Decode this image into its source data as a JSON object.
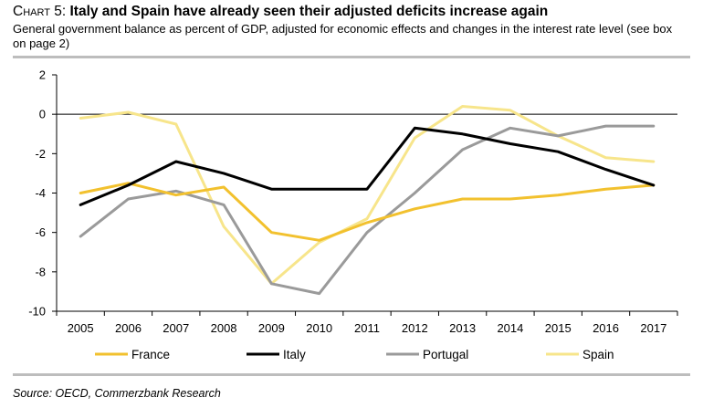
{
  "header": {
    "chart_label": "Chart 5:",
    "headline": "Italy and Spain have already seen their adjusted deficits increase again",
    "subtitle": "General government balance as percent of GDP, adjusted for economic effects and changes in the interest rate level (see box on page 2)"
  },
  "footer": {
    "source": "Source: OECD, Commerzbank Research"
  },
  "chart_data": {
    "type": "line",
    "x": [
      "2005",
      "2006",
      "2007",
      "2008",
      "2009",
      "2010",
      "2011",
      "2012",
      "2013",
      "2014",
      "2015",
      "2016",
      "2017"
    ],
    "ylim": [
      -10,
      2
    ],
    "yticks": [
      2,
      0,
      -2,
      -4,
      -6,
      -8,
      -10
    ],
    "grid": false,
    "legend_position": "bottom",
    "series": [
      {
        "name": "France",
        "color": "#f2c12e",
        "values": [
          -4.0,
          -3.5,
          -4.1,
          -3.7,
          -6.0,
          -6.4,
          -5.5,
          -4.8,
          -4.3,
          -4.3,
          -4.1,
          -3.8,
          -3.6
        ]
      },
      {
        "name": "Italy",
        "color": "#000000",
        "values": [
          -4.6,
          -3.6,
          -2.4,
          -3.0,
          -3.8,
          -3.8,
          -3.8,
          -0.7,
          -1.0,
          -1.5,
          -1.9,
          -2.8,
          -3.6
        ]
      },
      {
        "name": "Portugal",
        "color": "#9a9a9a",
        "values": [
          -6.2,
          -4.3,
          -3.9,
          -4.6,
          -8.6,
          -9.1,
          -6.0,
          -4.0,
          -1.8,
          -0.7,
          -1.1,
          -0.6,
          -0.6
        ]
      },
      {
        "name": "Spain",
        "color": "#f7e58b",
        "values": [
          -0.2,
          0.1,
          -0.5,
          -5.7,
          -8.6,
          -6.5,
          -5.3,
          -1.2,
          0.4,
          0.2,
          -1.1,
          -2.2,
          -2.4
        ]
      }
    ]
  }
}
